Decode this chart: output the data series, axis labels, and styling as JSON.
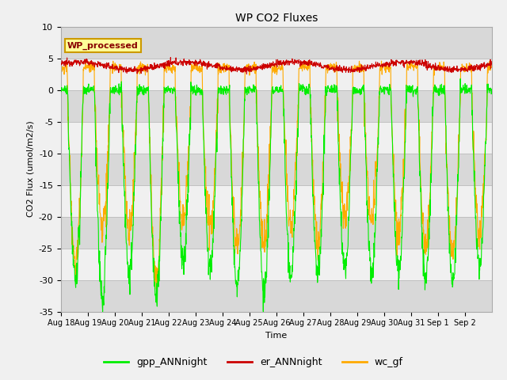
{
  "title": "WP CO2 Fluxes",
  "xlabel": "Time",
  "ylabel": "CO2 Flux (umol/m2/s)",
  "ylim": [
    -35,
    10
  ],
  "yticks": [
    -35,
    -30,
    -25,
    -20,
    -15,
    -10,
    -5,
    0,
    5,
    10
  ],
  "gpp_color": "#00ee00",
  "er_color": "#cc0000",
  "wc_color": "#ffaa00",
  "label_box_facecolor": "#ffff99",
  "label_box_edgecolor": "#cc9900",
  "label_text": "WP_processed",
  "label_text_color": "#880000",
  "legend_labels": [
    "gpp_ANNnight",
    "er_ANNnight",
    "wc_gf"
  ],
  "n_days": 16,
  "points_per_day": 96,
  "stripe_light": "#f0f0f0",
  "stripe_dark": "#d8d8d8",
  "grid_color": "#c0c0c0",
  "fig_facecolor": "#f0f0f0",
  "axes_facecolor": "#f0f0f0"
}
